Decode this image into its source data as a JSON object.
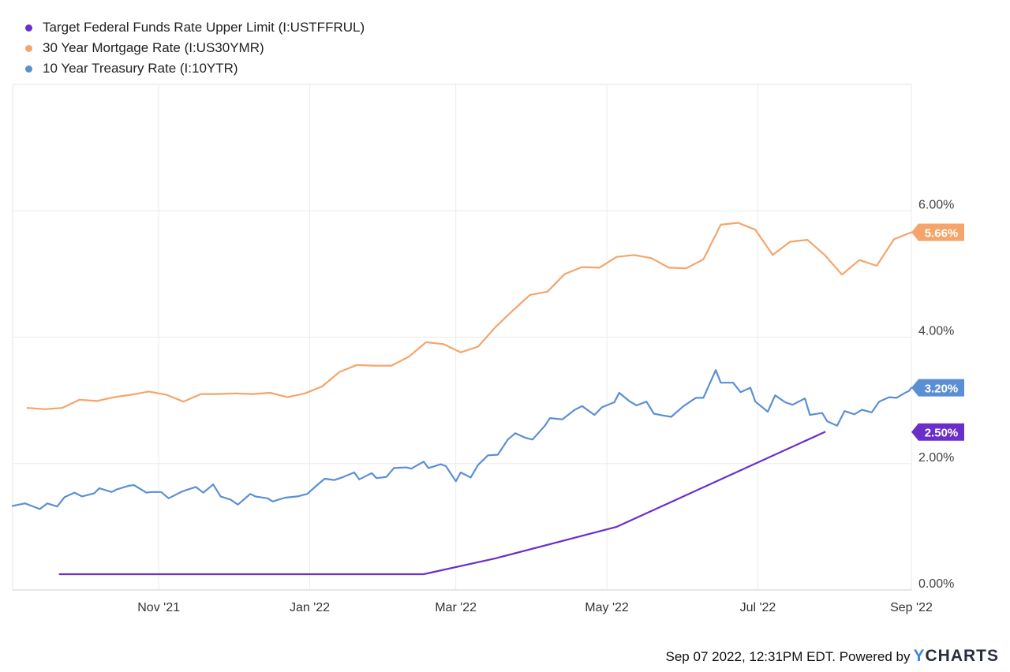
{
  "legend": [
    {
      "label": "Target Federal Funds Rate Upper Limit (I:USTFFRUL)",
      "color": "#6b2fc9"
    },
    {
      "label": "30 Year Mortgage Rate (I:US30YMR)",
      "color": "#f5a46a"
    },
    {
      "label": "10 Year Treasury Rate (I:10YTR)",
      "color": "#5b8fd4"
    }
  ],
  "footer": {
    "text": "Sep 07 2022, 12:31PM EDT. Powered by",
    "brand_y": "Y",
    "brand_rest": "CHARTS"
  },
  "chart_data": {
    "type": "line",
    "x_tick_labels": [
      "Nov '21",
      "Jan '22",
      "Mar '22",
      "May '22",
      "Jul '22",
      "Sep '22"
    ],
    "x_tick_dates": [
      "2021-11-01",
      "2022-01-01",
      "2022-03-01",
      "2022-05-01",
      "2022-07-01",
      "2022-09-01"
    ],
    "x_range": [
      "2021-09-03",
      "2022-09-01"
    ],
    "y_tick_labels": [
      "0.00%",
      "2.00%",
      "4.00%",
      "6.00%"
    ],
    "y_ticks": [
      0,
      2,
      4,
      6
    ],
    "ylim": [
      0,
      8
    ],
    "series": [
      {
        "name": "Target Federal Funds Rate Upper Limit (I:USTFFRUL)",
        "color": "#6b2fc9",
        "end_label": "2.50%",
        "end_value": 2.5,
        "points": [
          [
            "2021-09-22",
            0.25
          ],
          [
            "2022-02-16",
            0.25
          ],
          [
            "2022-03-17",
            0.5
          ],
          [
            "2022-05-05",
            1.0
          ],
          [
            "2022-06-16",
            1.75
          ],
          [
            "2022-07-28",
            2.5
          ]
        ]
      },
      {
        "name": "30 Year Mortgage Rate (I:US30YMR)",
        "color": "#f5a46a",
        "end_label": "5.66%",
        "end_value": 5.66,
        "points": [
          [
            "2021-09-09",
            2.88
          ],
          [
            "2021-09-16",
            2.86
          ],
          [
            "2021-09-23",
            2.88
          ],
          [
            "2021-09-30",
            3.01
          ],
          [
            "2021-10-07",
            2.99
          ],
          [
            "2021-10-14",
            3.05
          ],
          [
            "2021-10-21",
            3.09
          ],
          [
            "2021-10-28",
            3.14
          ],
          [
            "2021-11-04",
            3.09
          ],
          [
            "2021-11-11",
            2.98
          ],
          [
            "2021-11-18",
            3.1
          ],
          [
            "2021-11-24",
            3.1
          ],
          [
            "2021-12-02",
            3.11
          ],
          [
            "2021-12-09",
            3.1
          ],
          [
            "2021-12-16",
            3.12
          ],
          [
            "2021-12-23",
            3.05
          ],
          [
            "2021-12-30",
            3.11
          ],
          [
            "2022-01-06",
            3.22
          ],
          [
            "2022-01-13",
            3.45
          ],
          [
            "2022-01-20",
            3.56
          ],
          [
            "2022-01-27",
            3.55
          ],
          [
            "2022-02-03",
            3.55
          ],
          [
            "2022-02-10",
            3.69
          ],
          [
            "2022-02-17",
            3.92
          ],
          [
            "2022-02-24",
            3.89
          ],
          [
            "2022-03-03",
            3.76
          ],
          [
            "2022-03-10",
            3.85
          ],
          [
            "2022-03-17",
            4.16
          ],
          [
            "2022-03-24",
            4.42
          ],
          [
            "2022-03-31",
            4.67
          ],
          [
            "2022-04-07",
            4.72
          ],
          [
            "2022-04-14",
            5.0
          ],
          [
            "2022-04-21",
            5.11
          ],
          [
            "2022-04-28",
            5.1
          ],
          [
            "2022-05-05",
            5.27
          ],
          [
            "2022-05-12",
            5.3
          ],
          [
            "2022-05-19",
            5.25
          ],
          [
            "2022-05-26",
            5.1
          ],
          [
            "2022-06-02",
            5.09
          ],
          [
            "2022-06-09",
            5.23
          ],
          [
            "2022-06-16",
            5.78
          ],
          [
            "2022-06-23",
            5.81
          ],
          [
            "2022-06-30",
            5.7
          ],
          [
            "2022-07-07",
            5.3
          ],
          [
            "2022-07-14",
            5.51
          ],
          [
            "2022-07-21",
            5.54
          ],
          [
            "2022-07-28",
            5.3
          ],
          [
            "2022-08-04",
            4.99
          ],
          [
            "2022-08-11",
            5.22
          ],
          [
            "2022-08-18",
            5.13
          ],
          [
            "2022-08-25",
            5.55
          ],
          [
            "2022-09-01",
            5.66
          ]
        ]
      },
      {
        "name": "10 Year Treasury Rate (I:10YTR)",
        "color": "#5b8fd4",
        "end_label": "3.20%",
        "end_value": 3.2,
        "points": [
          [
            "2021-09-03",
            1.33
          ],
          [
            "2021-09-08",
            1.37
          ],
          [
            "2021-09-10",
            1.34
          ],
          [
            "2021-09-14",
            1.28
          ],
          [
            "2021-09-17",
            1.37
          ],
          [
            "2021-09-21",
            1.32
          ],
          [
            "2021-09-24",
            1.47
          ],
          [
            "2021-09-28",
            1.54
          ],
          [
            "2021-10-01",
            1.48
          ],
          [
            "2021-10-06",
            1.53
          ],
          [
            "2021-10-08",
            1.61
          ],
          [
            "2021-10-13",
            1.55
          ],
          [
            "2021-10-15",
            1.59
          ],
          [
            "2021-10-20",
            1.65
          ],
          [
            "2021-10-22",
            1.66
          ],
          [
            "2021-10-27",
            1.54
          ],
          [
            "2021-10-29",
            1.55
          ],
          [
            "2021-11-02",
            1.55
          ],
          [
            "2021-11-05",
            1.45
          ],
          [
            "2021-11-10",
            1.55
          ],
          [
            "2021-11-12",
            1.58
          ],
          [
            "2021-11-16",
            1.63
          ],
          [
            "2021-11-19",
            1.54
          ],
          [
            "2021-11-23",
            1.67
          ],
          [
            "2021-11-26",
            1.48
          ],
          [
            "2021-11-30",
            1.43
          ],
          [
            "2021-12-03",
            1.35
          ],
          [
            "2021-12-08",
            1.52
          ],
          [
            "2021-12-10",
            1.48
          ],
          [
            "2021-12-15",
            1.45
          ],
          [
            "2021-12-17",
            1.4
          ],
          [
            "2021-12-22",
            1.46
          ],
          [
            "2021-12-27",
            1.48
          ],
          [
            "2021-12-31",
            1.52
          ],
          [
            "2022-01-04",
            1.66
          ],
          [
            "2022-01-07",
            1.76
          ],
          [
            "2022-01-11",
            1.74
          ],
          [
            "2022-01-14",
            1.78
          ],
          [
            "2022-01-19",
            1.86
          ],
          [
            "2022-01-21",
            1.75
          ],
          [
            "2022-01-26",
            1.85
          ],
          [
            "2022-01-28",
            1.77
          ],
          [
            "2022-02-01",
            1.79
          ],
          [
            "2022-02-04",
            1.93
          ],
          [
            "2022-02-09",
            1.94
          ],
          [
            "2022-02-11",
            1.92
          ],
          [
            "2022-02-16",
            2.03
          ],
          [
            "2022-02-18",
            1.93
          ],
          [
            "2022-02-23",
            1.99
          ],
          [
            "2022-02-25",
            1.96
          ],
          [
            "2022-03-01",
            1.72
          ],
          [
            "2022-03-03",
            1.86
          ],
          [
            "2022-03-07",
            1.78
          ],
          [
            "2022-03-10",
            1.98
          ],
          [
            "2022-03-14",
            2.13
          ],
          [
            "2022-03-18",
            2.14
          ],
          [
            "2022-03-22",
            2.38
          ],
          [
            "2022-03-25",
            2.48
          ],
          [
            "2022-03-29",
            2.41
          ],
          [
            "2022-04-01",
            2.38
          ],
          [
            "2022-04-06",
            2.6
          ],
          [
            "2022-04-08",
            2.72
          ],
          [
            "2022-04-13",
            2.7
          ],
          [
            "2022-04-18",
            2.85
          ],
          [
            "2022-04-21",
            2.91
          ],
          [
            "2022-04-26",
            2.77
          ],
          [
            "2022-04-29",
            2.89
          ],
          [
            "2022-05-04",
            2.97
          ],
          [
            "2022-05-06",
            3.12
          ],
          [
            "2022-05-10",
            2.99
          ],
          [
            "2022-05-13",
            2.92
          ],
          [
            "2022-05-17",
            2.98
          ],
          [
            "2022-05-20",
            2.79
          ],
          [
            "2022-05-24",
            2.76
          ],
          [
            "2022-05-27",
            2.74
          ],
          [
            "2022-06-01",
            2.91
          ],
          [
            "2022-06-06",
            3.04
          ],
          [
            "2022-06-09",
            3.04
          ],
          [
            "2022-06-14",
            3.48
          ],
          [
            "2022-06-16",
            3.28
          ],
          [
            "2022-06-21",
            3.28
          ],
          [
            "2022-06-24",
            3.13
          ],
          [
            "2022-06-28",
            3.2
          ],
          [
            "2022-06-30",
            2.98
          ],
          [
            "2022-07-05",
            2.82
          ],
          [
            "2022-07-08",
            3.08
          ],
          [
            "2022-07-12",
            2.97
          ],
          [
            "2022-07-15",
            2.93
          ],
          [
            "2022-07-20",
            3.03
          ],
          [
            "2022-07-22",
            2.77
          ],
          [
            "2022-07-27",
            2.8
          ],
          [
            "2022-07-29",
            2.67
          ],
          [
            "2022-08-02",
            2.6
          ],
          [
            "2022-08-05",
            2.83
          ],
          [
            "2022-08-09",
            2.78
          ],
          [
            "2022-08-12",
            2.85
          ],
          [
            "2022-08-16",
            2.81
          ],
          [
            "2022-08-19",
            2.98
          ],
          [
            "2022-08-23",
            3.05
          ],
          [
            "2022-08-26",
            3.04
          ],
          [
            "2022-08-29",
            3.11
          ],
          [
            "2022-08-31",
            3.15
          ],
          [
            "2022-09-01",
            3.2
          ]
        ]
      }
    ]
  }
}
